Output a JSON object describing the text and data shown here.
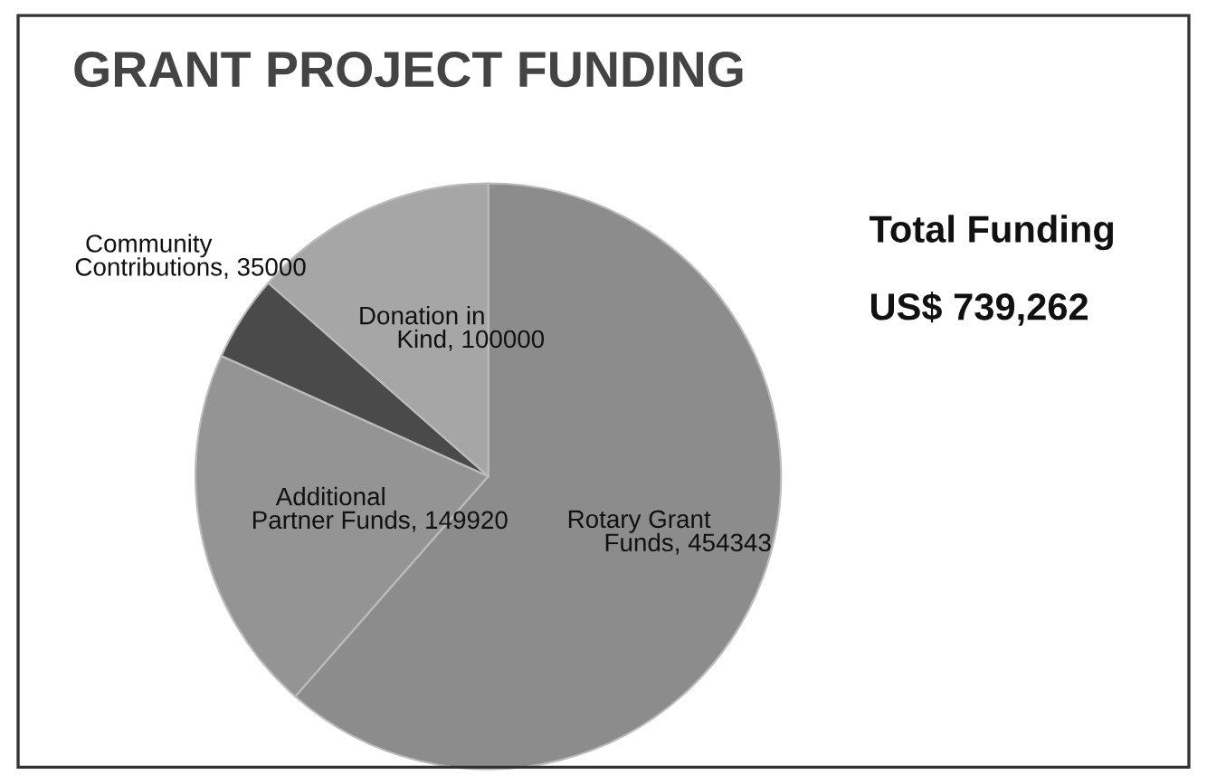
{
  "chart_data": {
    "type": "pie",
    "title": "GRANT PROJECT FUNDING",
    "categories": [
      "Rotary Grant\nFunds",
      "Additional\nPartner Funds",
      "Community\nContributions",
      "Donation in\nKind"
    ],
    "values": [
      454343,
      149920,
      35000,
      100000
    ],
    "colors": [
      "#8c8c8c",
      "#949494",
      "#4a4a4a",
      "#a6a6a6"
    ],
    "value_labels": [
      ", 454343",
      ", 149920",
      ", 35000",
      ", 100000"
    ],
    "annotations": [
      "Total Funding",
      "US$ 739,262"
    ],
    "legend": false
  }
}
